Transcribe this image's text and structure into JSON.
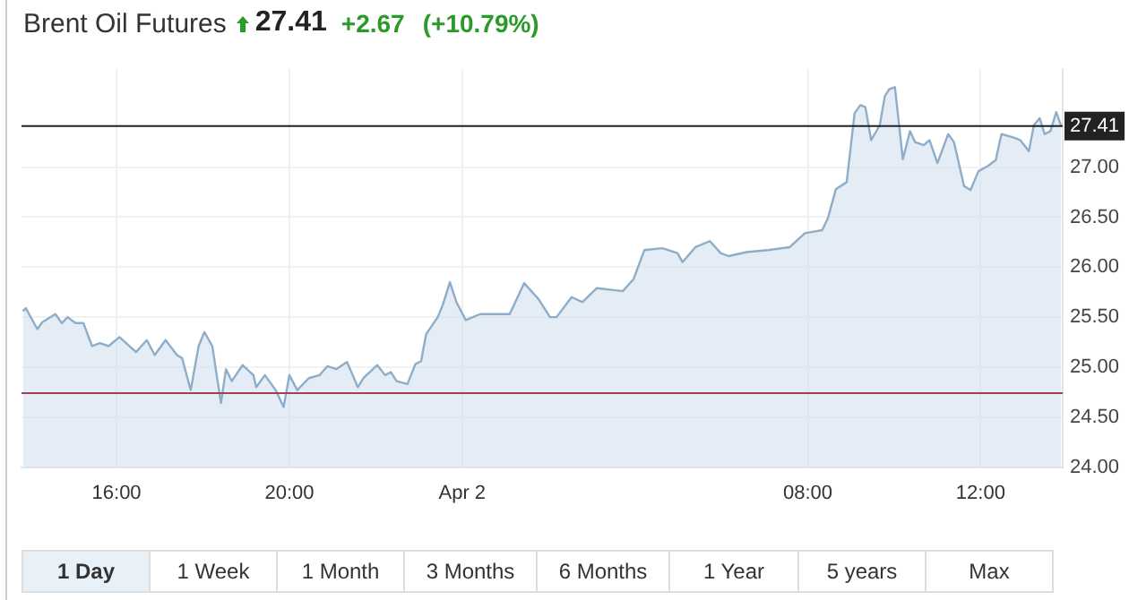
{
  "chart_data": {
    "type": "area",
    "title": "Brent Oil Futures",
    "subtitle": "27.41",
    "annotations": [
      "+2.67",
      "(+10.79%)",
      "1 Day",
      "1 Week",
      "1 Month",
      "3 Months",
      "6 Months",
      "1 Year",
      "5 years",
      "Max"
    ],
    "x": [
      "--04-01T13:50",
      "--04-01T13:54",
      "--04-01T14:10",
      "--04-01T14:17",
      "--04-01T14:35",
      "--04-01T14:44",
      "--04-01T14:52",
      "--04-01T15:03",
      "--04-01T15:14",
      "--04-01T15:26",
      "--04-01T15:37",
      "--04-01T15:49",
      "--04-01T16:04",
      "--04-01T16:27",
      "--04-01T16:42",
      "--04-01T16:53",
      "--04-01T17:08",
      "--04-01T17:24",
      "--04-01T17:31",
      "--04-01T17:43",
      "--04-01T17:54",
      "--04-01T18:02",
      "--04-01T18:13",
      "--04-01T18:25",
      "--04-01T18:32",
      "--04-01T18:40",
      "--04-01T18:55",
      "--04-01T19:10",
      "--04-01T19:14",
      "--04-01T19:26",
      "--04-01T19:41",
      "--04-01T19:52",
      "--04-01T20:00",
      "--04-01T20:11",
      "--04-01T20:27",
      "--04-01T20:42",
      "--04-01T20:53",
      "--04-01T21:05",
      "--04-01T21:20",
      "--04-01T21:28",
      "--04-01T21:35",
      "--04-01T21:43",
      "--04-01T22:02",
      "--04-01T22:13",
      "--04-01T22:21",
      "--04-01T22:29",
      "--04-01T22:44",
      "--04-01T22:55",
      "--04-01T23:03",
      "--04-01T23:10",
      "--04-01T23:26",
      "--04-01T23:33",
      "--04-01T23:43",
      "--04-01T23:52",
      "--04-02T00:05",
      "--04-02T00:25",
      "--04-02T01:06",
      "--04-02T01:26",
      "--04-02T01:46",
      "--04-02T02:02",
      "--04-02T02:11",
      "--04-02T02:32",
      "--04-02T02:47",
      "--04-02T03:07",
      "--04-02T03:43",
      "--04-02T03:58",
      "--04-02T04:13",
      "--04-02T04:38",
      "--04-02T04:59",
      "--04-02T05:06",
      "--04-02T05:24",
      "--04-02T05:44",
      "--04-02T05:59",
      "--04-02T06:10",
      "--04-02T06:35",
      "--04-02T07:05",
      "--04-02T07:35",
      "--04-02T07:56",
      "--04-02T08:12",
      "--04-02T08:20",
      "--04-02T08:28",
      "--04-02T08:39",
      "--04-02T08:54",
      "--04-02T09:05",
      "--04-02T09:13",
      "--04-02T09:20",
      "--04-02T09:28",
      "--04-02T09:40",
      "--04-02T09:47",
      "--04-02T09:53",
      "--04-02T10:01",
      "--04-02T10:12",
      "--04-02T10:22",
      "--04-02T10:29",
      "--04-02T10:41",
      "--04-02T10:49",
      "--04-02T11:00",
      "--04-02T11:15",
      "--04-02T11:23",
      "--04-02T11:37",
      "--04-02T11:46",
      "--04-02T11:57",
      "--04-02T12:10",
      "--04-02T12:21",
      "--04-02T12:29",
      "--04-02T12:44",
      "--04-02T12:55",
      "--04-02T13:07",
      "--04-02T13:14",
      "--04-02T13:22",
      "--04-02T13:29",
      "--04-02T13:37",
      "--04-02T13:45",
      "--04-02T13:52"
    ],
    "series": [
      {
        "color": "#8eadc9",
        "values": [
          25.56,
          25.59,
          25.38,
          25.45,
          25.53,
          25.44,
          25.5,
          25.44,
          25.44,
          25.21,
          25.24,
          25.21,
          25.3,
          25.15,
          25.27,
          25.12,
          25.27,
          25.12,
          25.09,
          24.77,
          25.21,
          25.35,
          25.21,
          24.64,
          24.98,
          24.86,
          25.02,
          24.92,
          24.8,
          24.92,
          24.77,
          24.6,
          24.92,
          24.77,
          24.89,
          24.92,
          25.01,
          24.98,
          25.05,
          24.92,
          24.8,
          24.89,
          25.02,
          24.92,
          24.95,
          24.86,
          24.83,
          25.03,
          25.06,
          25.33,
          25.5,
          25.62,
          25.85,
          25.65,
          25.47,
          25.53,
          25.53,
          25.84,
          25.68,
          25.5,
          25.5,
          25.7,
          25.65,
          25.79,
          25.76,
          25.88,
          26.17,
          26.19,
          26.14,
          26.05,
          26.2,
          26.26,
          26.14,
          26.11,
          26.15,
          26.17,
          26.2,
          26.34,
          26.36,
          26.37,
          26.49,
          26.78,
          26.85,
          27.54,
          27.62,
          27.6,
          27.27,
          27.42,
          27.71,
          27.78,
          27.8,
          27.08,
          27.36,
          27.25,
          27.22,
          27.27,
          27.04,
          27.33,
          27.25,
          26.81,
          26.77,
          26.96,
          27.01,
          27.07,
          27.33,
          27.3,
          27.27,
          27.16,
          27.42,
          27.49,
          27.33,
          27.36,
          27.55,
          27.41
        ]
      }
    ],
    "xlim": [
      "--04-01T13:48",
      "--04-02T13:54"
    ],
    "xticks": [
      {
        "value": "--04-01T16:00",
        "label": "16:00"
      },
      {
        "value": "--04-01T20:00",
        "label": "20:00"
      },
      {
        "value": "--04-02T00:00",
        "label": "Apr 2"
      },
      {
        "value": "--04-02T08:00",
        "label": "08:00"
      },
      {
        "value": "--04-02T12:00",
        "label": "12:00"
      }
    ],
    "ylim": [
      24,
      27.98
    ],
    "yticks": [
      {
        "value": 24,
        "label": "24.00"
      },
      {
        "value": 24.5,
        "label": "24.50"
      },
      {
        "value": 25,
        "label": "25.00"
      },
      {
        "value": 25.5,
        "label": "25.50"
      },
      {
        "value": 26,
        "label": "26.00"
      },
      {
        "value": 26.5,
        "label": "26.50"
      },
      {
        "value": 27,
        "label": "27.00"
      }
    ],
    "ref_lines": [
      {
        "axis": "y",
        "value": 27.41,
        "label": "27.41",
        "color": "#222222"
      },
      {
        "axis": "y",
        "value": 24.74,
        "color": "#a04050"
      }
    ],
    "grid": true,
    "legend": false,
    "marker": "none",
    "line_style": "solid"
  }
}
